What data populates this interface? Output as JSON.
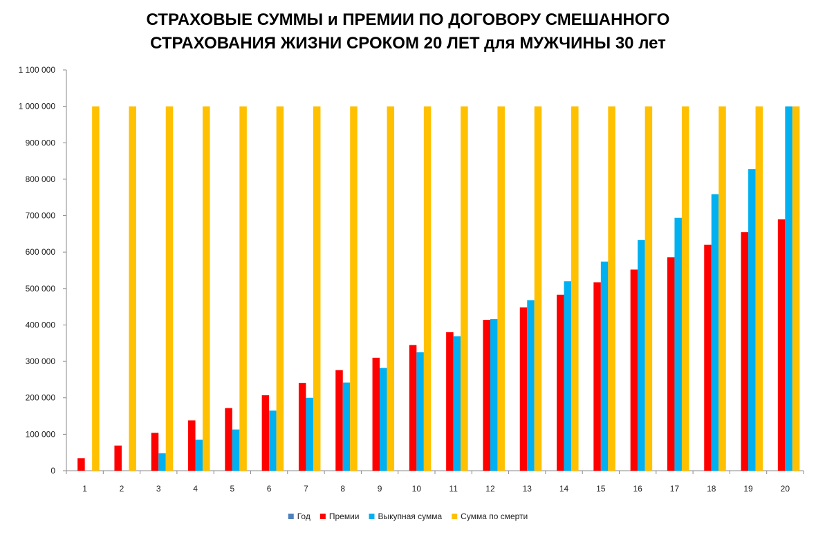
{
  "chart_data": {
    "type": "bar",
    "title_line1": "СТРАХОВЫЕ СУММЫ и ПРЕМИИ ПО ДОГОВОРУ СМЕШАННОГО",
    "title_line2": "СТРАХОВАНИЯ ЖИЗНИ СРОКОМ 20 ЛЕТ для МУЖЧИНЫ 30 лет",
    "xlabel": "",
    "ylabel": "",
    "categories": [
      "1",
      "2",
      "3",
      "4",
      "5",
      "6",
      "7",
      "8",
      "9",
      "10",
      "11",
      "12",
      "13",
      "14",
      "15",
      "16",
      "17",
      "18",
      "19",
      "20"
    ],
    "ylim": [
      0,
      1100000
    ],
    "ytick_values": [
      0,
      100000,
      200000,
      300000,
      400000,
      500000,
      600000,
      700000,
      800000,
      900000,
      1000000,
      1100000
    ],
    "ytick_labels": [
      "0",
      "100 000",
      "200 000",
      "300 000",
      "400 000",
      "500 000",
      "600 000",
      "700 000",
      "800 000",
      "900 000",
      "1 000 000",
      "1 100 000"
    ],
    "grid": false,
    "legend_position": "bottom",
    "series": [
      {
        "name": "Год",
        "color": "#4F81BD",
        "values": [
          1,
          2,
          3,
          4,
          5,
          6,
          7,
          8,
          9,
          10,
          11,
          12,
          13,
          14,
          15,
          16,
          17,
          18,
          19,
          20
        ]
      },
      {
        "name": "Премии",
        "color": "#FF0000",
        "values": [
          34000,
          69000,
          104000,
          138000,
          172000,
          207000,
          241000,
          276000,
          310000,
          345000,
          380000,
          414000,
          448000,
          483000,
          517000,
          552000,
          586000,
          620000,
          655000,
          690000
        ]
      },
      {
        "name": "Выкупная сумма",
        "color": "#00B0F0",
        "values": [
          0,
          0,
          48000,
          85000,
          113000,
          165000,
          200000,
          242000,
          282000,
          325000,
          369000,
          416000,
          468000,
          520000,
          574000,
          633000,
          694000,
          759000,
          828000,
          1000000
        ]
      },
      {
        "name": "Сумма по смерти",
        "color": "#FFC000",
        "values": [
          1000000,
          1000000,
          1000000,
          1000000,
          1000000,
          1000000,
          1000000,
          1000000,
          1000000,
          1000000,
          1000000,
          1000000,
          1000000,
          1000000,
          1000000,
          1000000,
          1000000,
          1000000,
          1000000,
          1000000
        ]
      }
    ]
  }
}
